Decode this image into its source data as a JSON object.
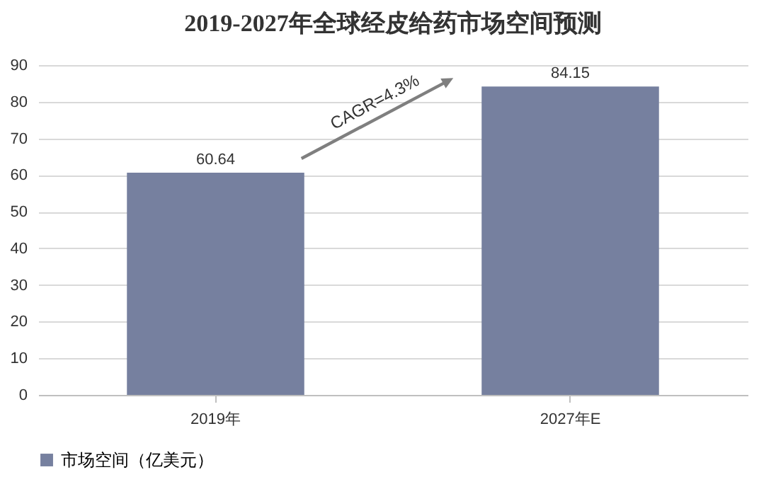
{
  "chart_data": {
    "type": "bar",
    "title": "2019-2027年全球经皮给药市场空间预测",
    "categories": [
      "2019年",
      "2027年E"
    ],
    "series": [
      {
        "name": "市场空间（亿美元）",
        "color": "#76809f",
        "values": [
          60.64,
          84.15
        ]
      }
    ],
    "ylim": [
      0,
      90
    ],
    "yticks": [
      0,
      10,
      20,
      30,
      40,
      50,
      60,
      70,
      80,
      90
    ],
    "grid": "y",
    "legend": "bottom",
    "data_labels": true,
    "annotations": [
      "CAGR=4.3%"
    ]
  }
}
